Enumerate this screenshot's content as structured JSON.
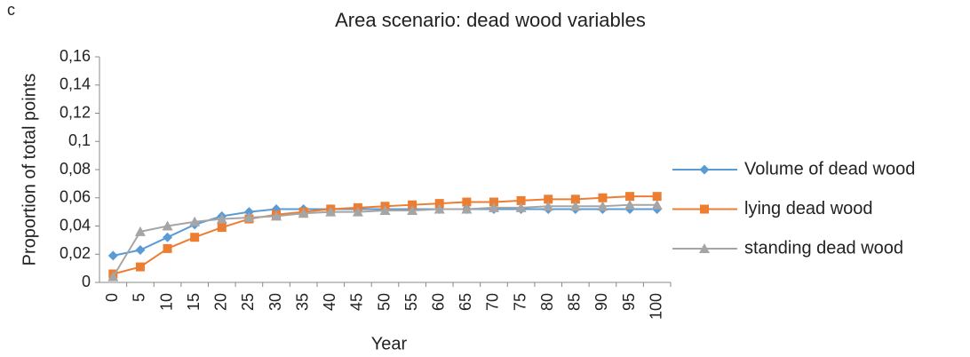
{
  "chart_data": {
    "type": "line",
    "panel_label": "c",
    "title": "Area scenario: dead wood variables",
    "xlabel": "Year",
    "ylabel": "Proportion of total points",
    "categories": [
      "0",
      "5",
      "10",
      "15",
      "20",
      "25",
      "30",
      "35",
      "40",
      "45",
      "50",
      "55",
      "60",
      "65",
      "70",
      "75",
      "80",
      "85",
      "90",
      "95",
      "100"
    ],
    "series": [
      {
        "name": "Volume of dead wood",
        "color": "#5b9bd5",
        "marker": "diamond",
        "values": [
          0.019,
          0.023,
          0.032,
          0.041,
          0.047,
          0.05,
          0.052,
          0.052,
          0.052,
          0.052,
          0.052,
          0.052,
          0.052,
          0.052,
          0.052,
          0.052,
          0.052,
          0.052,
          0.052,
          0.052,
          0.052
        ]
      },
      {
        "name": "lying dead wood",
        "color": "#ed7d31",
        "marker": "square",
        "values": [
          0.006,
          0.011,
          0.024,
          0.032,
          0.039,
          0.045,
          0.048,
          0.05,
          0.052,
          0.053,
          0.054,
          0.055,
          0.056,
          0.057,
          0.057,
          0.058,
          0.059,
          0.059,
          0.06,
          0.061,
          0.061
        ]
      },
      {
        "name": "standing dead wood",
        "color": "#a5a5a5",
        "marker": "triangle",
        "values": [
          0.004,
          0.036,
          0.04,
          0.043,
          0.045,
          0.046,
          0.047,
          0.049,
          0.05,
          0.05,
          0.051,
          0.051,
          0.052,
          0.052,
          0.053,
          0.053,
          0.054,
          0.054,
          0.054,
          0.055,
          0.055
        ]
      }
    ],
    "ylim": [
      0,
      0.16
    ],
    "yticks": [
      0,
      {
        "value": 0.02,
        "label": "0,02"
      },
      {
        "value": 0.04,
        "label": "0,04"
      },
      {
        "value": 0.06,
        "label": "0,06"
      },
      {
        "value": 0.08,
        "label": "0,08"
      },
      {
        "value": 0.1,
        "label": "0,1"
      },
      {
        "value": 0.12,
        "label": "0,12"
      },
      {
        "value": 0.14,
        "label": "0,14"
      },
      {
        "value": 0.16,
        "label": "0,16"
      }
    ],
    "grid": false,
    "legend": "right"
  }
}
